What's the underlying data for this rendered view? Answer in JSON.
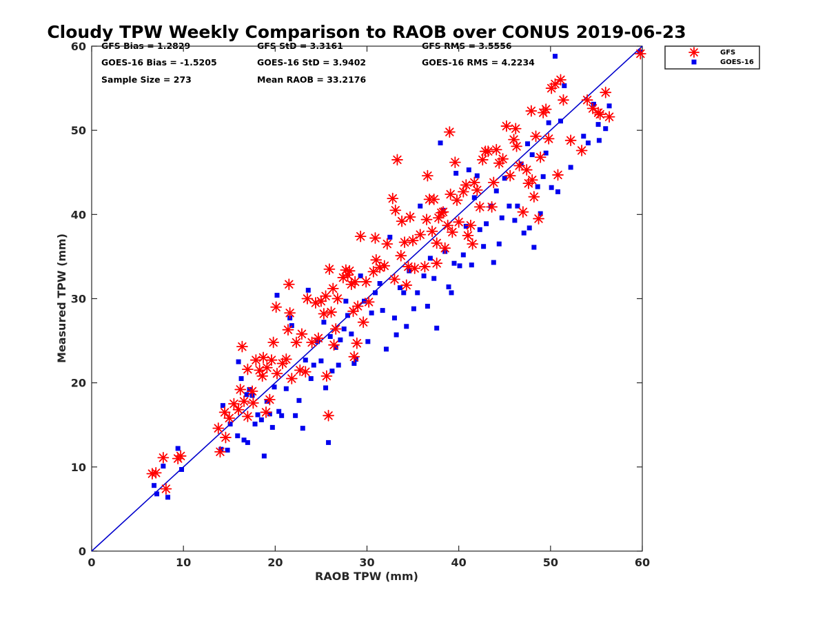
{
  "chart_data": {
    "type": "scatter",
    "title": "Cloudy TPW Weekly Comparison to RAOB over CONUS 2019-06-23",
    "xlabel": "RAOB TPW (mm)",
    "ylabel": "Measured TPW (mm)",
    "xlim": [
      0,
      60
    ],
    "ylim": [
      0,
      60
    ],
    "xticks": [
      "0",
      "10",
      "20",
      "30",
      "40",
      "50",
      "60"
    ],
    "yticks": [
      "0",
      "10",
      "20",
      "30",
      "40",
      "50",
      "60"
    ],
    "grid": false,
    "legend_position": "outside-top-right",
    "reference_line": {
      "x": [
        0,
        60
      ],
      "y": [
        0,
        60
      ],
      "color": "#0000cc"
    },
    "stats": [
      {
        "text": "GFS Bias = 1.2829"
      },
      {
        "text": "GFS StD = 3.3161"
      },
      {
        "text": "GFS RMS = 3.5556"
      },
      {
        "text": "GOES-16 Bias = -1.5205"
      },
      {
        "text": "GOES-16 StD = 3.9402"
      },
      {
        "text": "GOES-16 RMS = 4.2234"
      },
      {
        "text": "Sample Size = 273"
      },
      {
        "text": "Mean RAOB = 33.2176"
      }
    ],
    "series": [
      {
        "name": "GFS",
        "marker": "asterisk",
        "color": "#ff0000",
        "points": [
          [
            6.6,
            9.2
          ],
          [
            7.0,
            9.3
          ],
          [
            7.8,
            11.1
          ],
          [
            8.1,
            7.4
          ],
          [
            9.4,
            11.0
          ],
          [
            9.7,
            11.3
          ],
          [
            13.8,
            14.6
          ],
          [
            14.0,
            11.8
          ],
          [
            14.5,
            16.5
          ],
          [
            14.6,
            13.5
          ],
          [
            15.0,
            15.8
          ],
          [
            15.5,
            17.5
          ],
          [
            16.0,
            16.8
          ],
          [
            16.2,
            19.2
          ],
          [
            16.4,
            24.3
          ],
          [
            16.6,
            17.8
          ],
          [
            17.0,
            21.6
          ],
          [
            17.0,
            16.0
          ],
          [
            17.5,
            19.0
          ],
          [
            17.6,
            17.6
          ],
          [
            17.9,
            22.7
          ],
          [
            18.3,
            21.5
          ],
          [
            18.6,
            20.8
          ],
          [
            18.7,
            23.0
          ],
          [
            19.0,
            16.5
          ],
          [
            19.1,
            21.8
          ],
          [
            19.4,
            18.0
          ],
          [
            19.6,
            22.7
          ],
          [
            19.8,
            24.8
          ],
          [
            20.1,
            29.0
          ],
          [
            20.2,
            21.1
          ],
          [
            20.8,
            22.3
          ],
          [
            21.2,
            22.8
          ],
          [
            21.4,
            26.3
          ],
          [
            21.5,
            31.7
          ],
          [
            21.6,
            28.3
          ],
          [
            21.8,
            20.5
          ],
          [
            22.3,
            24.8
          ],
          [
            22.7,
            21.5
          ],
          [
            22.9,
            25.8
          ],
          [
            23.3,
            21.3
          ],
          [
            23.5,
            30.0
          ],
          [
            24.0,
            24.8
          ],
          [
            24.4,
            29.5
          ],
          [
            24.7,
            25.3
          ],
          [
            25.0,
            29.7
          ],
          [
            25.3,
            28.2
          ],
          [
            25.5,
            30.3
          ],
          [
            25.6,
            20.8
          ],
          [
            25.8,
            16.1
          ],
          [
            25.9,
            33.5
          ],
          [
            26.1,
            28.4
          ],
          [
            26.3,
            31.2
          ],
          [
            26.4,
            24.5
          ],
          [
            26.6,
            26.4
          ],
          [
            26.8,
            30.0
          ],
          [
            27.4,
            32.5
          ],
          [
            27.7,
            33.4
          ],
          [
            27.9,
            32.8
          ],
          [
            28.1,
            33.3
          ],
          [
            28.3,
            31.7
          ],
          [
            28.5,
            28.5
          ],
          [
            28.6,
            23.1
          ],
          [
            28.7,
            32.0
          ],
          [
            28.9,
            24.7
          ],
          [
            29.0,
            29.1
          ],
          [
            29.3,
            37.4
          ],
          [
            29.6,
            27.2
          ],
          [
            29.9,
            32.0
          ],
          [
            30.2,
            29.6
          ],
          [
            30.7,
            33.2
          ],
          [
            30.9,
            37.2
          ],
          [
            31.0,
            34.6
          ],
          [
            31.4,
            33.7
          ],
          [
            31.9,
            33.9
          ],
          [
            32.2,
            36.5
          ],
          [
            32.8,
            41.9
          ],
          [
            33.0,
            32.3
          ],
          [
            33.1,
            40.5
          ],
          [
            33.3,
            46.5
          ],
          [
            33.7,
            35.1
          ],
          [
            33.8,
            39.2
          ],
          [
            34.1,
            36.7
          ],
          [
            34.3,
            31.6
          ],
          [
            34.5,
            33.8
          ],
          [
            34.7,
            39.7
          ],
          [
            35.0,
            36.9
          ],
          [
            35.2,
            33.6
          ],
          [
            35.8,
            37.6
          ],
          [
            36.3,
            33.8
          ],
          [
            36.5,
            39.4
          ],
          [
            36.6,
            44.6
          ],
          [
            36.8,
            41.8
          ],
          [
            37.1,
            38.0
          ],
          [
            37.3,
            41.8
          ],
          [
            37.6,
            36.6
          ],
          [
            37.6,
            34.2
          ],
          [
            37.8,
            39.6
          ],
          [
            38.1,
            40.2
          ],
          [
            38.3,
            40.3
          ],
          [
            38.5,
            36.0
          ],
          [
            38.8,
            38.7
          ],
          [
            39.0,
            49.8
          ],
          [
            39.1,
            42.4
          ],
          [
            39.3,
            37.9
          ],
          [
            39.6,
            46.2
          ],
          [
            39.8,
            41.7
          ],
          [
            40.0,
            39.1
          ],
          [
            40.5,
            42.7
          ],
          [
            40.8,
            43.5
          ],
          [
            41.0,
            37.5
          ],
          [
            41.3,
            38.7
          ],
          [
            41.5,
            36.5
          ],
          [
            41.7,
            43.8
          ],
          [
            42.0,
            42.9
          ],
          [
            42.3,
            40.9
          ],
          [
            42.6,
            46.5
          ],
          [
            42.9,
            47.5
          ],
          [
            43.2,
            47.5
          ],
          [
            43.6,
            40.9
          ],
          [
            43.8,
            43.8
          ],
          [
            44.1,
            47.7
          ],
          [
            44.4,
            46.1
          ],
          [
            44.8,
            46.6
          ],
          [
            45.2,
            50.5
          ],
          [
            45.6,
            44.6
          ],
          [
            46.0,
            48.9
          ],
          [
            46.2,
            50.2
          ],
          [
            46.3,
            48.1
          ],
          [
            46.6,
            45.8
          ],
          [
            47.0,
            40.3
          ],
          [
            47.4,
            45.3
          ],
          [
            47.6,
            43.7
          ],
          [
            47.9,
            52.3
          ],
          [
            48.0,
            44.1
          ],
          [
            48.2,
            42.1
          ],
          [
            48.4,
            49.3
          ],
          [
            48.7,
            39.5
          ],
          [
            48.9,
            46.8
          ],
          [
            49.2,
            52.1
          ],
          [
            49.5,
            52.5
          ],
          [
            49.8,
            49.0
          ],
          [
            50.1,
            55.0
          ],
          [
            50.5,
            55.5
          ],
          [
            50.8,
            44.7
          ],
          [
            51.1,
            56.0
          ],
          [
            51.4,
            53.6
          ],
          [
            52.2,
            48.8
          ],
          [
            53.4,
            47.6
          ],
          [
            54.0,
            53.6
          ],
          [
            54.6,
            52.6
          ],
          [
            55.2,
            52.1
          ],
          [
            55.4,
            51.9
          ],
          [
            56.0,
            54.5
          ],
          [
            56.4,
            51.6
          ],
          [
            59.8,
            59.1
          ]
        ]
      },
      {
        "name": "GOES-16",
        "marker": "square",
        "color": "#0000ee",
        "points": [
          [
            6.8,
            7.8
          ],
          [
            7.1,
            6.8
          ],
          [
            7.8,
            10.1
          ],
          [
            8.3,
            6.4
          ],
          [
            9.4,
            12.2
          ],
          [
            9.8,
            9.7
          ],
          [
            14.1,
            12.1
          ],
          [
            14.3,
            17.3
          ],
          [
            14.8,
            12.0
          ],
          [
            15.1,
            15.1
          ],
          [
            15.9,
            13.7
          ],
          [
            16.0,
            22.5
          ],
          [
            16.3,
            20.5
          ],
          [
            16.6,
            13.2
          ],
          [
            16.9,
            18.6
          ],
          [
            17.0,
            12.9
          ],
          [
            17.2,
            19.2
          ],
          [
            17.5,
            18.5
          ],
          [
            17.8,
            15.1
          ],
          [
            18.1,
            16.2
          ],
          [
            18.5,
            15.6
          ],
          [
            18.8,
            11.3
          ],
          [
            19.1,
            17.8
          ],
          [
            19.4,
            16.3
          ],
          [
            19.7,
            14.7
          ],
          [
            19.9,
            19.5
          ],
          [
            20.2,
            30.4
          ],
          [
            20.4,
            16.6
          ],
          [
            20.7,
            16.1
          ],
          [
            21.2,
            19.3
          ],
          [
            21.6,
            27.7
          ],
          [
            21.8,
            26.8
          ],
          [
            22.2,
            16.1
          ],
          [
            22.6,
            17.9
          ],
          [
            23.0,
            14.6
          ],
          [
            23.3,
            22.7
          ],
          [
            23.6,
            31.0
          ],
          [
            23.9,
            20.5
          ],
          [
            24.2,
            22.1
          ],
          [
            24.6,
            24.9
          ],
          [
            25.0,
            22.6
          ],
          [
            25.3,
            27.2
          ],
          [
            25.5,
            19.4
          ],
          [
            25.8,
            12.9
          ],
          [
            26.0,
            25.5
          ],
          [
            26.2,
            21.4
          ],
          [
            26.6,
            24.2
          ],
          [
            26.9,
            22.1
          ],
          [
            27.1,
            25.1
          ],
          [
            27.5,
            26.4
          ],
          [
            27.7,
            29.7
          ],
          [
            27.9,
            28.0
          ],
          [
            28.3,
            25.8
          ],
          [
            28.6,
            22.3
          ],
          [
            28.8,
            22.8
          ],
          [
            29.3,
            32.7
          ],
          [
            29.7,
            29.7
          ],
          [
            30.1,
            24.9
          ],
          [
            30.5,
            28.3
          ],
          [
            30.9,
            30.7
          ],
          [
            31.4,
            31.8
          ],
          [
            31.7,
            28.6
          ],
          [
            32.1,
            24.0
          ],
          [
            32.5,
            37.3
          ],
          [
            33.0,
            27.7
          ],
          [
            33.2,
            25.7
          ],
          [
            33.6,
            31.3
          ],
          [
            34.0,
            30.7
          ],
          [
            34.3,
            26.7
          ],
          [
            34.6,
            33.3
          ],
          [
            35.1,
            28.8
          ],
          [
            35.5,
            30.7
          ],
          [
            35.8,
            41.0
          ],
          [
            36.2,
            32.7
          ],
          [
            36.6,
            29.1
          ],
          [
            36.9,
            34.8
          ],
          [
            37.3,
            32.4
          ],
          [
            37.6,
            26.5
          ],
          [
            38.0,
            48.5
          ],
          [
            38.3,
            40.5
          ],
          [
            38.5,
            35.6
          ],
          [
            38.9,
            31.4
          ],
          [
            39.2,
            30.7
          ],
          [
            39.5,
            34.2
          ],
          [
            39.7,
            44.9
          ],
          [
            40.1,
            33.9
          ],
          [
            40.5,
            35.2
          ],
          [
            40.8,
            38.6
          ],
          [
            41.1,
            45.3
          ],
          [
            41.4,
            34.0
          ],
          [
            41.7,
            42.0
          ],
          [
            42.0,
            44.6
          ],
          [
            42.3,
            38.2
          ],
          [
            42.7,
            36.2
          ],
          [
            43.0,
            38.9
          ],
          [
            43.5,
            41.0
          ],
          [
            43.8,
            34.3
          ],
          [
            44.1,
            42.8
          ],
          [
            44.4,
            36.5
          ],
          [
            44.7,
            39.6
          ],
          [
            45.0,
            44.3
          ],
          [
            45.5,
            41.0
          ],
          [
            46.1,
            39.3
          ],
          [
            46.4,
            41.0
          ],
          [
            46.8,
            46.0
          ],
          [
            47.1,
            37.8
          ],
          [
            47.5,
            48.4
          ],
          [
            47.7,
            38.4
          ],
          [
            48.0,
            47.1
          ],
          [
            48.2,
            36.1
          ],
          [
            48.6,
            43.3
          ],
          [
            48.9,
            40.1
          ],
          [
            49.2,
            44.5
          ],
          [
            49.5,
            47.3
          ],
          [
            49.8,
            50.9
          ],
          [
            50.1,
            43.2
          ],
          [
            50.5,
            58.8
          ],
          [
            50.8,
            42.7
          ],
          [
            51.1,
            51.1
          ],
          [
            51.5,
            55.3
          ],
          [
            52.2,
            45.6
          ],
          [
            53.6,
            49.3
          ],
          [
            54.1,
            48.5
          ],
          [
            54.7,
            53.1
          ],
          [
            55.2,
            50.7
          ],
          [
            55.3,
            48.8
          ],
          [
            56.0,
            50.2
          ],
          [
            56.4,
            52.9
          ],
          [
            59.7,
            59.3
          ]
        ]
      }
    ]
  }
}
